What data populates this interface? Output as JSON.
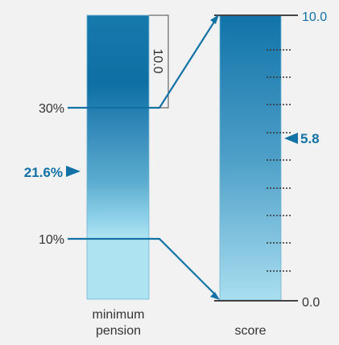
{
  "left_bar": {
    "label_line1": "minimum",
    "label_line2": "pension",
    "bracket_label": "10.0",
    "upper_threshold": "30%",
    "lower_threshold": "10%",
    "current_value": "21.6%"
  },
  "right_bar": {
    "label": "score",
    "max_label": "10.0",
    "min_label": "0.0",
    "current_value": "5.8"
  },
  "colors": {
    "accent": "#1272a6",
    "dark": "#0d6a9e",
    "light": "#aee3f2",
    "text": "#333333",
    "background": "#f2f2f2"
  }
}
